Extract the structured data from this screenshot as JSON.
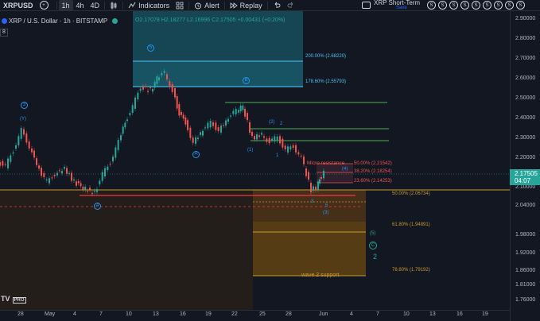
{
  "toolbar": {
    "symbol": "XRPUSD",
    "timeframes": [
      "1h",
      "4h",
      "4D"
    ],
    "indicators_label": "Indicators",
    "alert_label": "Alert",
    "replay_label": "Replay",
    "layout_name": "XRP Short-Term",
    "layout_status": "Save",
    "drawer_buttons": [
      "S",
      "S",
      "S",
      "S",
      "S",
      "S",
      "S",
      "S",
      "S"
    ]
  },
  "legend": {
    "title": "XRP / U.S. Dollar · 1h · BITSTAMP",
    "ohlc": "O2.17078 H2.18277 L2.16996 C2.17505 +0.00431 (+0.20%)",
    "box_value": "8"
  },
  "price_axis": {
    "labels": [
      "2.90000",
      "2.80000",
      "2.70000",
      "2.60000",
      "2.50000",
      "2.40000",
      "2.30000",
      "2.20000",
      "2.10000",
      "2.04000",
      "1.98000",
      "1.92000",
      "1.86000",
      "1.81000",
      "1.76000",
      "1.71000"
    ],
    "current_price": "2.17505",
    "countdown": "04:07",
    "current_color": "#26a69a"
  },
  "time_axis": {
    "labels": [
      "28",
      "May",
      "4",
      "7",
      "10",
      "13",
      "16",
      "19",
      "22",
      "25",
      "28",
      "Jun",
      "4",
      "7",
      "10",
      "13",
      "16",
      "19"
    ]
  },
  "annotations": {
    "fib_upper": [
      {
        "label": "200.00% (2.68220)"
      },
      {
        "label": "178.60% (2.55793)"
      }
    ],
    "fib_micro": [
      {
        "label": "50.00% (2.21542)"
      },
      {
        "label": "38.20% (2.18254)"
      },
      {
        "label": "23.60% (2.14253)"
      }
    ],
    "micro_resistance": "Micro resistance",
    "fib_lower": [
      {
        "label": "50.00% (2.06734)"
      },
      {
        "label": "61.80% (1.94891)"
      },
      {
        "label": "78.60% (1.79192)"
      }
    ],
    "wave2_support": "wave 2 support",
    "wave_labels": [
      "3",
      "(Y)",
      "5",
      "B",
      "A",
      "4",
      "(1)",
      "(2)",
      "2",
      "1",
      "3",
      "(4)",
      "(3)",
      "5",
      "(5)",
      "C",
      "2"
    ]
  },
  "brand": {
    "logo": "TV",
    "pro": "PRO"
  },
  "colors": {
    "background": "#131722",
    "up": "#26a69a",
    "down": "#ef5350",
    "fib_blue": "#2196f3",
    "fib_gold": "#c99a2e",
    "green_line": "#4caf50",
    "red_line": "#f23645"
  }
}
